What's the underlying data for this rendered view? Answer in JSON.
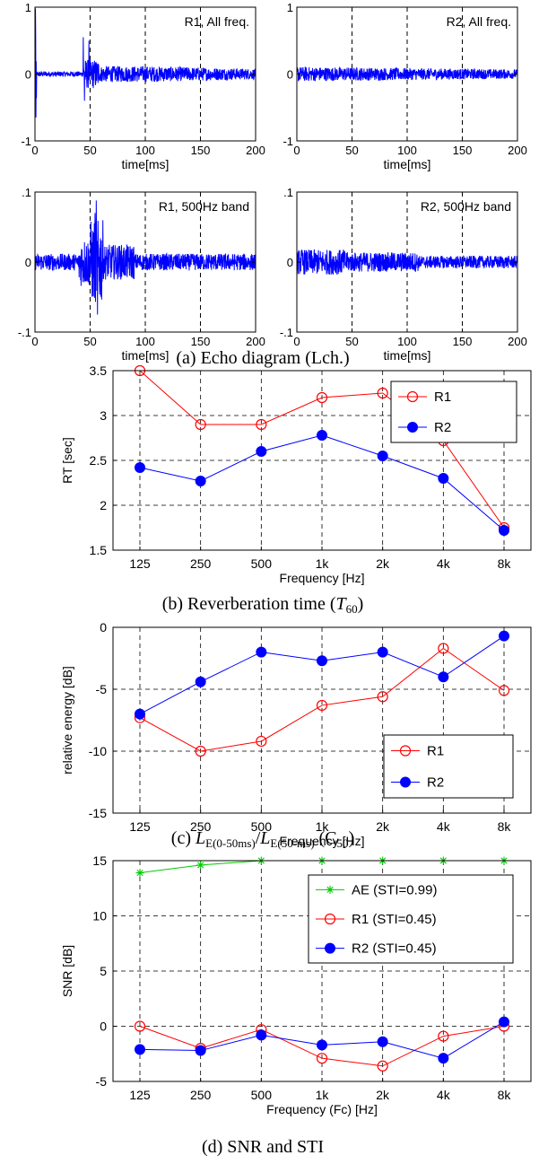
{
  "chart_data": [
    {
      "type": "line",
      "panel": "echo-r1-all",
      "annotation": "R1, All freq.",
      "xlabel": "time[ms]",
      "xlim": [
        0,
        200
      ],
      "ylim": [
        -1,
        1
      ],
      "xticks": [
        0,
        50,
        100,
        150,
        200
      ],
      "yticks": [
        -1,
        0,
        1
      ],
      "grid": "vertical dashed",
      "color": "#0000ff"
    },
    {
      "type": "line",
      "panel": "echo-r2-all",
      "annotation": "R2, All freq.",
      "xlabel": "time[ms]",
      "xlim": [
        0,
        200
      ],
      "ylim": [
        -1,
        1
      ],
      "xticks": [
        0,
        50,
        100,
        150,
        200
      ],
      "yticks": [
        -1,
        0,
        1
      ],
      "grid": "vertical dashed",
      "color": "#0000ff"
    },
    {
      "type": "line",
      "panel": "echo-r1-500",
      "annotation": "R1, 500Hz band",
      "xlabel": "time[ms]",
      "xlim": [
        0,
        200
      ],
      "ylim": [
        -0.1,
        0.1
      ],
      "xticks": [
        0,
        50,
        100,
        150,
        200
      ],
      "yticks": [
        -0.1,
        0,
        0.1
      ],
      "grid": "vertical dashed",
      "color": "#0000ff"
    },
    {
      "type": "line",
      "panel": "echo-r2-500",
      "annotation": "R2, 500Hz band",
      "xlabel": "time[ms]",
      "xlim": [
        0,
        200
      ],
      "ylim": [
        -0.1,
        0.1
      ],
      "xticks": [
        0,
        50,
        100,
        150,
        200
      ],
      "yticks": [
        -0.1,
        0,
        0.1
      ],
      "grid": "vertical dashed",
      "color": "#0000ff"
    },
    {
      "type": "line",
      "panel": "reverb",
      "xlabel": "Frequency [Hz]",
      "ylabel": "RT [sec]",
      "categories": [
        "125",
        "250",
        "500",
        "1k",
        "2k",
        "4k",
        "8k"
      ],
      "ylim": [
        1.5,
        3.5
      ],
      "yticks": [
        1.5,
        2,
        2.5,
        3,
        3.5
      ],
      "grid": true,
      "legend": "top-right",
      "series": [
        {
          "name": "R1",
          "values": [
            3.5,
            2.9,
            2.9,
            3.2,
            3.25,
            2.72,
            1.75
          ],
          "color": "#ff0000",
          "marker": "open-circle"
        },
        {
          "name": "R2",
          "values": [
            2.42,
            2.27,
            2.6,
            2.78,
            2.55,
            2.3,
            1.72
          ],
          "color": "#0000ff",
          "marker": "filled-circle"
        }
      ]
    },
    {
      "type": "line",
      "panel": "c50",
      "xlabel": "Frequency [Hz]",
      "ylabel": "relative energy [dB]",
      "categories": [
        "125",
        "250",
        "500",
        "1k",
        "2k",
        "4k",
        "8k"
      ],
      "ylim": [
        -15,
        0
      ],
      "yticks": [
        -15,
        -10,
        -5,
        0
      ],
      "grid": true,
      "legend": "bottom-right",
      "series": [
        {
          "name": "R1",
          "values": [
            -7.3,
            -10.0,
            -9.2,
            -6.3,
            -5.6,
            -1.7,
            -5.1
          ],
          "color": "#ff0000",
          "marker": "open-circle"
        },
        {
          "name": "R2",
          "values": [
            -7.0,
            -4.4,
            -2.0,
            -2.7,
            -2.0,
            -4.0,
            -0.7
          ],
          "color": "#0000ff",
          "marker": "filled-circle"
        }
      ]
    },
    {
      "type": "line",
      "panel": "snr",
      "xlabel": "Frequency (Fc) [Hz]",
      "ylabel": "SNR [dB]",
      "categories": [
        "125",
        "250",
        "500",
        "1k",
        "2k",
        "4k",
        "8k"
      ],
      "ylim": [
        -5,
        15
      ],
      "yticks": [
        -5,
        0,
        5,
        10,
        15
      ],
      "grid": true,
      "legend": "top-right",
      "series": [
        {
          "name": "AE (STI=0.99)",
          "values": [
            13.9,
            14.6,
            15,
            15,
            15,
            15,
            15
          ],
          "color": "#00cc00",
          "marker": "star"
        },
        {
          "name": "R1 (STI=0.45)",
          "values": [
            0.0,
            -2.0,
            -0.3,
            -2.9,
            -3.6,
            -0.9,
            0.0
          ],
          "color": "#ff0000",
          "marker": "open-circle"
        },
        {
          "name": "R2 (STI=0.45)",
          "values": [
            -2.1,
            -2.2,
            -0.8,
            -1.7,
            -1.4,
            -2.9,
            0.4
          ],
          "color": "#0000ff",
          "marker": "filled-circle"
        }
      ]
    }
  ],
  "captions": {
    "a": "(a) Echo diagram (Lch.)",
    "b_pre": "(b) Reverberation time (",
    "b_sym": "T",
    "b_sub": "60",
    "b_post": ")",
    "c_pre": "(c) ",
    "c_L1": "L",
    "c_sub1": "E(0-50ms)",
    "c_slash": "/",
    "c_L2": "L",
    "c_sub2": "E(50-ms)",
    "c_post": " (C",
    "c_sub3": "50",
    "c_end": ")",
    "d": "(d) SNR and STI"
  }
}
